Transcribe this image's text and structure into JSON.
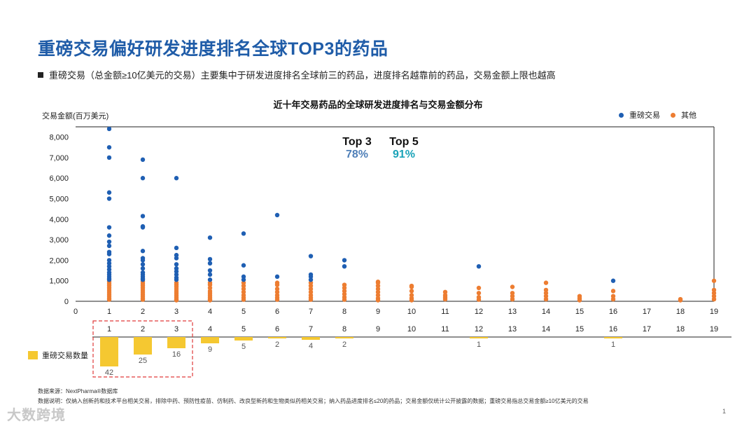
{
  "header": {
    "title": "重磅交易偏好研发进度排名全球TOP3的药品",
    "bullet": "重磅交易（总金额≥10亿美元的交易）主要集中于研发进度排名全球前三的药品，进度排名越靠前的药品，交易金额上限也越高"
  },
  "colors": {
    "title": "#1f5ca8",
    "major": "#1f5fb3",
    "other": "#ed7d31",
    "bar": "#f5c831",
    "top3": "#4f7fb8",
    "top5": "#1aa3b8"
  },
  "stats": {
    "top3_label": "Top 3",
    "top3_value": "78%",
    "top5_label": "Top 5",
    "top5_value": "91%"
  },
  "legend": {
    "bar_label": "重磅交易数量"
  },
  "chart_data": [
    {
      "type": "scatter",
      "title": "近十年交易药品的全球研发进度排名与交易金额分布",
      "ylabel": "交易金额(百万美元)",
      "xlabel": "",
      "xlim": [
        0,
        19
      ],
      "ylim": [
        0,
        8500
      ],
      "x_ticks": [
        "0",
        "1",
        "2",
        "3",
        "4",
        "5",
        "6",
        "7",
        "8",
        "9",
        "10",
        "11",
        "12",
        "13",
        "14",
        "15",
        "16",
        "17",
        "18",
        "19"
      ],
      "y_ticks": [
        "0",
        "1,000",
        "2,000",
        "3,000",
        "4,000",
        "5,000",
        "6,000",
        "7,000",
        "8,000"
      ],
      "grid": false,
      "legend_position": "top-right",
      "series": [
        {
          "name": "重磅交易",
          "points": [
            [
              1,
              8400
            ],
            [
              1,
              7500
            ],
            [
              1,
              7000
            ],
            [
              1,
              5300
            ],
            [
              1,
              5000
            ],
            [
              1,
              3600
            ],
            [
              1,
              3200
            ],
            [
              1,
              2900
            ],
            [
              1,
              2700
            ],
            [
              1,
              2400
            ],
            [
              1,
              2300
            ],
            [
              1,
              2000
            ],
            [
              1,
              1850
            ],
            [
              1,
              1700
            ],
            [
              1,
              1550
            ],
            [
              1,
              1400
            ],
            [
              1,
              1300
            ],
            [
              1,
              1200
            ],
            [
              1,
              1100
            ],
            [
              1,
              1050
            ],
            [
              2,
              6900
            ],
            [
              2,
              6000
            ],
            [
              2,
              4150
            ],
            [
              2,
              3650
            ],
            [
              2,
              3600
            ],
            [
              2,
              2450
            ],
            [
              2,
              2100
            ],
            [
              2,
              2000
            ],
            [
              2,
              1800
            ],
            [
              2,
              1600
            ],
            [
              2,
              1400
            ],
            [
              2,
              1300
            ],
            [
              2,
              1200
            ],
            [
              2,
              1100
            ],
            [
              2,
              1050
            ],
            [
              3,
              6000
            ],
            [
              3,
              2600
            ],
            [
              3,
              2250
            ],
            [
              3,
              2100
            ],
            [
              3,
              1800
            ],
            [
              3,
              1600
            ],
            [
              3,
              1450
            ],
            [
              3,
              1300
            ],
            [
              3,
              1150
            ],
            [
              3,
              1050
            ],
            [
              4,
              3100
            ],
            [
              4,
              2050
            ],
            [
              4,
              1850
            ],
            [
              4,
              1500
            ],
            [
              4,
              1300
            ],
            [
              4,
              1050
            ],
            [
              5,
              3300
            ],
            [
              5,
              1750
            ],
            [
              5,
              1200
            ],
            [
              5,
              1050
            ],
            [
              6,
              4200
            ],
            [
              6,
              1200
            ],
            [
              7,
              2200
            ],
            [
              7,
              1300
            ],
            [
              7,
              1200
            ],
            [
              7,
              1050
            ],
            [
              8,
              2000
            ],
            [
              8,
              1700
            ],
            [
              12,
              1700
            ],
            [
              16,
              1000
            ]
          ]
        },
        {
          "name": "其他",
          "points": [
            [
              1,
              950
            ],
            [
              1,
              850
            ],
            [
              1,
              750
            ],
            [
              1,
              650
            ],
            [
              1,
              550
            ],
            [
              1,
              450
            ],
            [
              1,
              350
            ],
            [
              1,
              250
            ],
            [
              1,
              150
            ],
            [
              1,
              80
            ],
            [
              2,
              950
            ],
            [
              2,
              850
            ],
            [
              2,
              750
            ],
            [
              2,
              650
            ],
            [
              2,
              550
            ],
            [
              2,
              450
            ],
            [
              2,
              350
            ],
            [
              2,
              250
            ],
            [
              2,
              150
            ],
            [
              2,
              80
            ],
            [
              3,
              900
            ],
            [
              3,
              800
            ],
            [
              3,
              700
            ],
            [
              3,
              600
            ],
            [
              3,
              500
            ],
            [
              3,
              400
            ],
            [
              3,
              300
            ],
            [
              3,
              200
            ],
            [
              3,
              100
            ],
            [
              3,
              50
            ],
            [
              4,
              900
            ],
            [
              4,
              800
            ],
            [
              4,
              650
            ],
            [
              4,
              500
            ],
            [
              4,
              400
            ],
            [
              4,
              300
            ],
            [
              4,
              200
            ],
            [
              4,
              100
            ],
            [
              4,
              50
            ],
            [
              5,
              900
            ],
            [
              5,
              750
            ],
            [
              5,
              600
            ],
            [
              5,
              450
            ],
            [
              5,
              300
            ],
            [
              5,
              180
            ],
            [
              5,
              80
            ],
            [
              6,
              900
            ],
            [
              6,
              800
            ],
            [
              6,
              600
            ],
            [
              6,
              450
            ],
            [
              6,
              300
            ],
            [
              6,
              180
            ],
            [
              6,
              80
            ],
            [
              7,
              900
            ],
            [
              7,
              750
            ],
            [
              7,
              600
            ],
            [
              7,
              450
            ],
            [
              7,
              300
            ],
            [
              7,
              180
            ],
            [
              7,
              80
            ],
            [
              8,
              800
            ],
            [
              8,
              650
            ],
            [
              8,
              500
            ],
            [
              8,
              350
            ],
            [
              8,
              200
            ],
            [
              8,
              80
            ],
            [
              9,
              950
            ],
            [
              9,
              900
            ],
            [
              9,
              750
            ],
            [
              9,
              600
            ],
            [
              9,
              450
            ],
            [
              9,
              300
            ],
            [
              9,
              150
            ],
            [
              9,
              50
            ],
            [
              10,
              750
            ],
            [
              10,
              700
            ],
            [
              10,
              500
            ],
            [
              10,
              300
            ],
            [
              10,
              150
            ],
            [
              10,
              50
            ],
            [
              11,
              450
            ],
            [
              11,
              300
            ],
            [
              11,
              200
            ],
            [
              11,
              100
            ],
            [
              12,
              650
            ],
            [
              12,
              400
            ],
            [
              12,
              200
            ],
            [
              12,
              80
            ],
            [
              13,
              700
            ],
            [
              13,
              400
            ],
            [
              13,
              250
            ],
            [
              13,
              100
            ],
            [
              14,
              900
            ],
            [
              14,
              550
            ],
            [
              14,
              400
            ],
            [
              14,
              250
            ],
            [
              14,
              100
            ],
            [
              15,
              250
            ],
            [
              15,
              150
            ],
            [
              15,
              50
            ],
            [
              16,
              500
            ],
            [
              16,
              250
            ],
            [
              16,
              100
            ],
            [
              18,
              100
            ],
            [
              18,
              50
            ],
            [
              19,
              1000
            ],
            [
              19,
              550
            ],
            [
              19,
              400
            ],
            [
              19,
              250
            ],
            [
              19,
              100
            ]
          ]
        }
      ]
    },
    {
      "type": "bar",
      "title": "",
      "categories": [
        "1",
        "2",
        "3",
        "4",
        "5",
        "6",
        "7",
        "8",
        "9",
        "10",
        "11",
        "12",
        "13",
        "14",
        "15",
        "16",
        "17",
        "18",
        "19"
      ],
      "series": [
        {
          "name": "重磅交易数量",
          "values": [
            42,
            25,
            16,
            9,
            5,
            2,
            4,
            2,
            0,
            0,
            0,
            1,
            0,
            0,
            0,
            1,
            0,
            0,
            0
          ]
        }
      ],
      "value_labels": [
        "42",
        "25",
        "16",
        "9",
        "5",
        "2",
        "4",
        "2",
        "",
        "",
        "",
        "1",
        "",
        "",
        "",
        "1",
        "",
        "",
        ""
      ],
      "ylim": [
        0,
        42
      ]
    }
  ],
  "footer": {
    "source": "数据来源：NextPharma®数据库",
    "note": "数据说明：仅纳入创新药和技术平台相关交易，排除中药、预防性疫苗、仿制药、改良型新药和生物类似药相关交易；纳入药品进度排名≤20的药品；交易金额仅统计公开披露的数据；重磅交易指总交易金额≥10亿美元的交易",
    "logo": "大数跨境",
    "page": "1"
  }
}
